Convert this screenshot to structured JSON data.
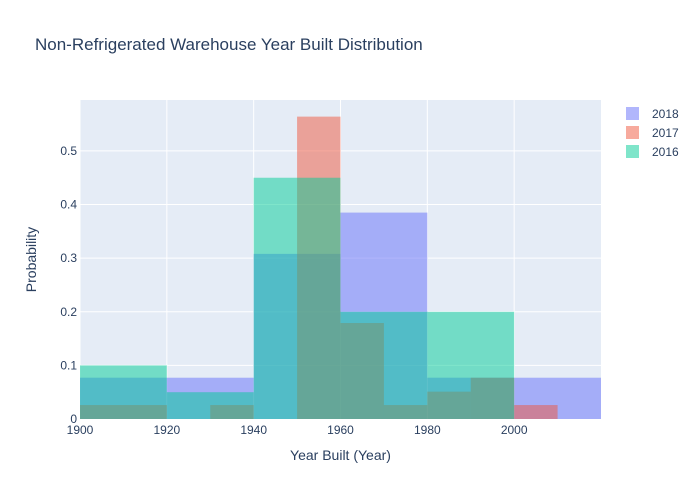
{
  "chart_data": {
    "type": "bar",
    "subtype": "overlaid histogram",
    "title": "Non-Refrigerated Warehouse Year Built Distribution",
    "xlabel": "Year Built (Year)",
    "ylabel": "Probability",
    "xlim": [
      1900,
      2020
    ],
    "ylim": [
      0,
      0.595
    ],
    "xticks": [
      1900,
      1920,
      1940,
      1960,
      1980,
      2000
    ],
    "yticks": [
      0,
      0.1,
      0.2,
      0.3,
      0.4,
      0.5
    ],
    "grid": true,
    "legend_position": "top-right",
    "plot_bgcolor": "#E5ECF6",
    "bin_width": 20,
    "series": [
      {
        "name": "2018",
        "color": "#636EFA",
        "bins": [
          {
            "x0": 1900,
            "x1": 1920,
            "value": 0.077
          },
          {
            "x0": 1920,
            "x1": 1940,
            "value": 0.077
          },
          {
            "x0": 1940,
            "x1": 1960,
            "value": 0.308
          },
          {
            "x0": 1960,
            "x1": 1980,
            "value": 0.385
          },
          {
            "x0": 1980,
            "x1": 2000,
            "value": 0.077
          },
          {
            "x0": 2000,
            "x1": 2020,
            "value": 0.077
          }
        ]
      },
      {
        "name": "2017",
        "color": "#EF553B",
        "bins": [
          {
            "x0": 1900,
            "x1": 1920,
            "value": 0.026
          },
          {
            "x0": 1920,
            "x1": 1930,
            "value": 0.0
          },
          {
            "x0": 1930,
            "x1": 1940,
            "value": 0.026
          },
          {
            "x0": 1940,
            "x1": 1950,
            "value": 0.0
          },
          {
            "x0": 1950,
            "x1": 1960,
            "value": 0.564
          },
          {
            "x0": 1960,
            "x1": 1970,
            "value": 0.179
          },
          {
            "x0": 1970,
            "x1": 1980,
            "value": 0.026
          },
          {
            "x0": 1980,
            "x1": 1990,
            "value": 0.051
          },
          {
            "x0": 1990,
            "x1": 2000,
            "value": 0.077
          },
          {
            "x0": 2000,
            "x1": 2010,
            "value": 0.026
          }
        ]
      },
      {
        "name": "2016",
        "color": "#00CC96",
        "bins": [
          {
            "x0": 1900,
            "x1": 1920,
            "value": 0.1
          },
          {
            "x0": 1920,
            "x1": 1940,
            "value": 0.05
          },
          {
            "x0": 1940,
            "x1": 1960,
            "value": 0.45
          },
          {
            "x0": 1960,
            "x1": 1980,
            "value": 0.2
          },
          {
            "x0": 1980,
            "x1": 2000,
            "value": 0.2
          }
        ]
      }
    ]
  }
}
